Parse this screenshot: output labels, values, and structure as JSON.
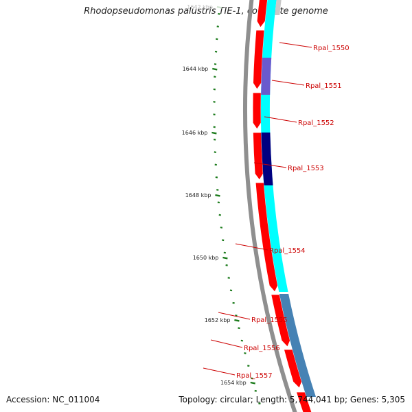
{
  "title": "Rhodopseudomonas palustris TIE-1, complete genome",
  "accession_text": "Accession: NC_011004",
  "stats_text": "Topology: circular; Length: 5,744,041 bp; Genes: 5,305",
  "colors": {
    "backbone": "#8f8f8f",
    "forward_cds": "#ff0000",
    "reverse_cds": "#00ffff",
    "tick": "#1a7a1a",
    "label": "#cc0000",
    "hit_medium": "#6a5acd",
    "hit_strong": "#000080",
    "hit_blue": "#4682b4"
  },
  "ticks": [
    {
      "label": "1642 kbp",
      "faded": true
    },
    {
      "label": "1644 kbp",
      "faded": false
    },
    {
      "label": "1646 kbp",
      "faded": false
    },
    {
      "label": "1648 kbp",
      "faded": false
    },
    {
      "label": "1650 kbp",
      "faded": false
    },
    {
      "label": "1652 kbp",
      "faded": false
    },
    {
      "label": "1654 kbp",
      "faded": false
    }
  ],
  "genes": [
    {
      "name": "Rpal_1550"
    },
    {
      "name": "Rpal_1551"
    },
    {
      "name": "Rpal_1552"
    },
    {
      "name": "Rpal_1553"
    },
    {
      "name": "Rpal_1554"
    },
    {
      "name": "Rpal_1555"
    },
    {
      "name": "Rpal_1556"
    },
    {
      "name": "Rpal_1557"
    }
  ]
}
